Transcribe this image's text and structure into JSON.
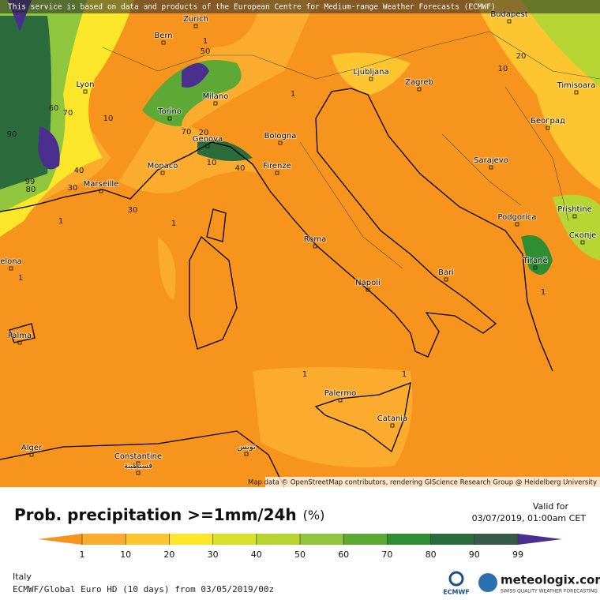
{
  "banner": "This service is based on data and products of the European Centre for Medium-range Weather Forecasts (ECMWF)",
  "map": {
    "cities": [
      "Zurich",
      "Bern",
      "Budapest",
      "Lyon",
      "Ljubljana",
      "Zagreb",
      "Timisoara",
      "Torino",
      "Milano",
      "Београд",
      "Bologna",
      "Genova",
      "Monaco",
      "Firenze",
      "Sarajevo",
      "Marseille",
      "Podgorica",
      "Prishtine",
      "Roma",
      "Скопје",
      "Tiranë",
      "Bari",
      "Napoli",
      "Palma",
      "Palermo",
      "Catania",
      "Alger",
      "Constantine",
      "قسنطينة",
      "تونس",
      "elona"
    ],
    "contour_labels": [
      "1",
      "1",
      "1",
      "1",
      "1",
      "1",
      "1",
      "1",
      "10",
      "10",
      "10",
      "20",
      "20",
      "30",
      "30",
      "40",
      "40",
      "50",
      "60",
      "70",
      "70",
      "80",
      "90",
      "99"
    ],
    "attribution": "Map data © OpenStreetMap contributors, rendering GIScience Research Group @ Heidelberg University"
  },
  "legend": {
    "title": "Prob. precipitation >=1mm/24h",
    "unit": "(%)",
    "ticks": [
      1,
      10,
      20,
      30,
      40,
      50,
      60,
      70,
      80,
      90,
      99
    ],
    "colors": [
      "#f7941d",
      "#fbac2e",
      "#fdc52f",
      "#fce62a",
      "#d8e02b",
      "#b6d432",
      "#8fc63d",
      "#5ea835",
      "#2f8d33",
      "#2b6b3c",
      "#355a48",
      "#4b2f8e"
    ]
  },
  "valid": {
    "label": "Valid for",
    "time": "03/07/2019, 01:00am CET"
  },
  "footer": {
    "region": "Italy",
    "model": "ECMWF/Global Euro HD (10 days) from 03/05/2019/00z",
    "ecmwf": "ECMWF",
    "brand": "meteologix.com",
    "tagline": "SWISS QUALITY WEATHER FORECASTING"
  }
}
